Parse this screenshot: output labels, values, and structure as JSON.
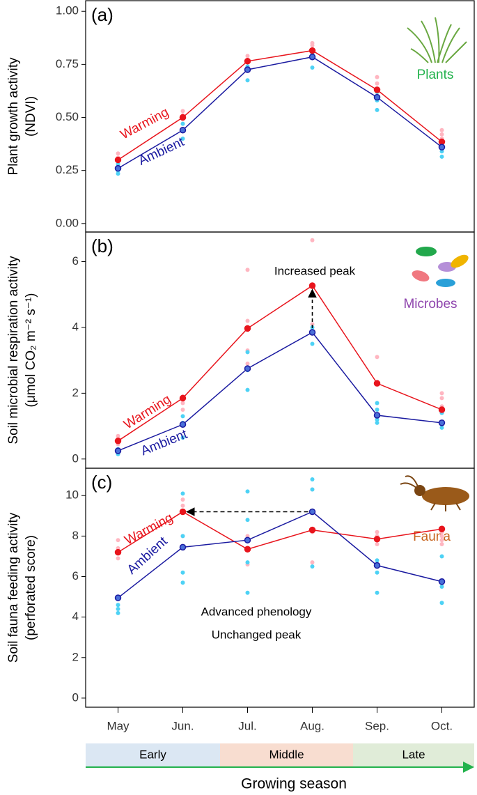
{
  "chart_data": [
    {
      "type": "line",
      "panel_label": "(a)",
      "y_label": [
        "Plant growth activity",
        "(NDVI)"
      ],
      "icon_label": "Plants",
      "icon_label_color": "#22b24c",
      "ylim": [
        -0.04,
        1.05
      ],
      "yticks": [
        {
          "value": 0,
          "label": "0.00"
        },
        {
          "value": 0.25,
          "label": "0.25"
        },
        {
          "value": 0.5,
          "label": "0.50"
        },
        {
          "value": 0.75,
          "label": "0.75"
        },
        {
          "value": 1,
          "label": "1.00"
        }
      ],
      "series": [
        {
          "name": "Warming",
          "color": "#e8141c",
          "replicate_color": "#ffb6c1",
          "values": [
            0.3,
            0.5,
            0.765,
            0.815,
            0.63,
            0.385
          ],
          "replicates": [
            [
              0.33,
              0.31,
              0.29
            ],
            [
              0.53,
              0.51,
              0.47
            ],
            [
              0.79,
              0.77,
              0.74
            ],
            [
              0.85,
              0.84,
              0.8
            ],
            [
              0.69,
              0.66,
              0.6
            ],
            [
              0.44,
              0.42,
              0.4,
              0.37
            ]
          ]
        },
        {
          "name": "Ambient",
          "color": "#1a1aa0",
          "replicate_color": "#4dd2f5",
          "values": [
            0.26,
            0.44,
            0.725,
            0.785,
            0.595,
            0.36
          ],
          "replicates": [
            [
              0.28,
              0.25,
              0.235
            ],
            [
              0.47,
              0.44,
              0.4
            ],
            [
              0.74,
              0.72,
              0.675
            ],
            [
              0.8,
              0.78,
              0.735
            ],
            [
              0.62,
              0.58,
              0.535
            ],
            [
              0.37,
              0.34,
              0.315
            ]
          ]
        }
      ]
    },
    {
      "type": "line",
      "panel_label": "(b)",
      "y_label": [
        "Soil microbial respiration activity",
        "(μmol CO₂ m⁻² s⁻¹)"
      ],
      "icon_label": "Microbes",
      "icon_label_color": "#8e44ad",
      "annotations": [
        "Increased peak"
      ],
      "ylim": [
        -0.28,
        6.9
      ],
      "yticks": [
        0,
        2,
        4,
        6
      ],
      "series": [
        {
          "name": "Warming",
          "color": "#e8141c",
          "replicate_color": "#ffb6c1",
          "values": [
            0.55,
            1.85,
            3.97,
            5.27,
            2.3,
            1.5
          ],
          "replicates": [
            [
              0.7,
              0.6,
              0.45
            ],
            [
              1.9,
              1.7,
              1.5
            ],
            [
              5.75,
              4.2,
              3.3,
              2.9
            ],
            [
              6.65,
              5.3,
              4.1
            ],
            [
              3.1,
              2.3
            ],
            [
              2.0,
              1.85,
              1.6,
              1.4
            ]
          ]
        },
        {
          "name": "Ambient",
          "color": "#1a1aa0",
          "replicate_color": "#4dd2f5",
          "values": [
            0.25,
            1.05,
            2.75,
            3.85,
            1.33,
            1.1
          ],
          "replicates": [
            [
              0.3,
              0.2,
              0.15
            ],
            [
              1.3,
              1.1,
              0.65
            ],
            [
              3.25,
              2.7,
              2.1
            ],
            [
              4.0,
              3.85,
              3.5
            ],
            [
              1.7,
              1.5,
              1.2,
              1.1
            ],
            [
              1.4,
              1.1,
              0.95
            ]
          ]
        }
      ]
    },
    {
      "type": "line",
      "panel_label": "(c)",
      "y_label": [
        "Soil fauna feeding activity",
        "(perforated score)"
      ],
      "icon_label": "Fauna",
      "icon_label_color": "#c8641e",
      "annotations": [
        "Advanced phenology",
        "Unchanged peak"
      ],
      "categories": [
        "May",
        "Jun.",
        "Jul.",
        "Aug.",
        "Sep.",
        "Oct."
      ],
      "ylim": [
        -0.45,
        11.35
      ],
      "yticks": [
        0,
        2,
        4,
        6,
        8,
        10
      ],
      "series": [
        {
          "name": "Warming",
          "color": "#e8141c",
          "replicate_color": "#ffb6c1",
          "values": [
            7.2,
            9.2,
            7.35,
            8.3,
            7.85,
            8.35
          ],
          "replicates": [
            [
              7.8,
              7.4,
              6.9
            ],
            [
              9.8,
              9.5,
              8.0
            ],
            [
              8.0,
              7.8,
              6.6
            ],
            [
              10.3,
              8.2,
              6.7
            ],
            [
              8.2,
              8.0,
              7.6
            ],
            [
              8.2,
              8.0,
              7.8,
              7.6
            ]
          ]
        },
        {
          "name": "Ambient",
          "color": "#1a1aa0",
          "replicate_color": "#4dd2f5",
          "values": [
            4.95,
            7.45,
            7.8,
            9.2,
            6.55,
            5.75
          ],
          "replicates": [
            [
              4.6,
              4.4,
              4.2
            ],
            [
              10.1,
              8.0,
              6.2,
              5.7
            ],
            [
              10.2,
              8.8,
              6.7,
              5.2
            ],
            [
              10.8,
              10.3,
              6.5
            ],
            [
              6.8,
              6.2,
              5.2
            ],
            [
              7.0,
              5.8,
              5.5,
              4.7
            ]
          ]
        }
      ]
    }
  ],
  "season_bar": {
    "label": "Growing season",
    "segments": [
      {
        "label": "Early",
        "color": "#dbe7f3"
      },
      {
        "label": "Middle",
        "color": "#f8ddd0"
      },
      {
        "label": "Late",
        "color": "#e0ecd8"
      }
    ]
  }
}
